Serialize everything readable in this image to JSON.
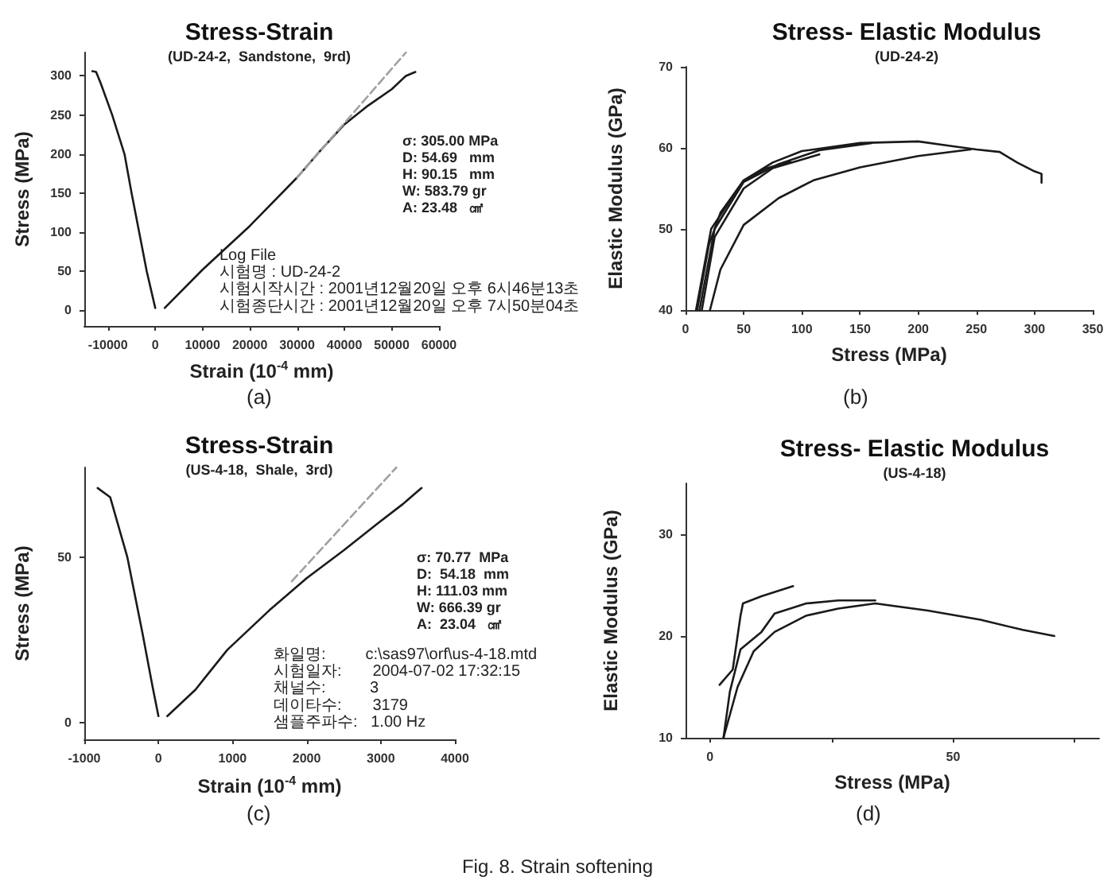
{
  "chart_data": [
    {
      "type": "line",
      "title": "Stress-Strain",
      "subtitle": "(UD-24-2,  Sandstone,  9rd)",
      "xlabel": "Strain (10$^{-4}$ mm)",
      "ylabel": "Stress (MPa)",
      "marker": "none",
      "xlim": [
        -15000,
        60000
      ],
      "xticks": [
        -10000,
        0,
        10000,
        20000,
        30000,
        40000,
        50000,
        60000
      ],
      "ylim": [
        -20,
        330
      ],
      "yticks": [
        0,
        50,
        100,
        150,
        200,
        250,
        300
      ],
      "series": [
        {
          "color": "#1a1a1a",
          "x": [
            0,
            -1800,
            -3400,
            -5000,
            -6500,
            -9100,
            -11500,
            -12500,
            -13300
          ],
          "values": [
            3,
            50,
            100,
            150,
            200,
            250,
            290,
            305,
            306
          ]
        },
        {
          "color": "#1a1a1a",
          "x": [
            2000,
            10000,
            20000,
            30000,
            35000,
            40000,
            45000,
            50000,
            53000,
            55000
          ],
          "values": [
            3,
            52,
            108,
            170,
            205,
            238,
            262,
            283,
            300,
            305
          ]
        },
        {
          "color": "#a0a0a0",
          "line_style": "dashed",
          "x": [
            30000,
            53000
          ],
          "values": [
            170,
            330
          ]
        }
      ],
      "annotations": [
        "(a)",
        "σ: 305.00 MPa",
        "D: 54.69   mm",
        "H: 90.15   mm",
        "W: 583.79 gr",
        "A: 23.48   ㎠",
        "Log File",
        "시험명 : UD-24-2",
        "시험시작시간 : 2001년12월20일 오후 6시46분13초",
        "시험종단시간 : 2001년12월20일 오후 7시50분04초"
      ]
    },
    {
      "type": "line",
      "title": "Stress- Elastic Modulus",
      "subtitle": "(UD-24-2)",
      "xlabel": "Stress (MPa)",
      "ylabel": "Elastic Modulus (GPa)",
      "marker": "none",
      "xlim": [
        0,
        350
      ],
      "xticks": [
        0,
        50,
        100,
        150,
        200,
        250,
        300,
        350
      ],
      "ylim": [
        40,
        70
      ],
      "yticks": [
        40,
        50,
        60,
        70
      ],
      "series": [
        {
          "color": "#1a1a1a",
          "x": [
            10,
            20,
            30,
            50,
            75,
            100,
            150,
            200,
            225,
            250,
            270,
            285,
            300,
            306,
            306
          ],
          "values": [
            40,
            48,
            52,
            56,
            58.2,
            59.6,
            60.6,
            60.8,
            60.3,
            59.8,
            59.5,
            58.2,
            57.1,
            56.8,
            55.7
          ]
        },
        {
          "color": "#1a1a1a",
          "x": [
            21,
            30,
            50,
            80,
            110,
            150,
            200,
            245
          ],
          "values": [
            40,
            45,
            50.5,
            53.8,
            56,
            57.6,
            59,
            59.8
          ]
        },
        {
          "color": "#1a1a1a",
          "x": [
            12,
            25,
            50,
            80,
            115,
            160
          ],
          "values": [
            40,
            50,
            55.8,
            58,
            59.7,
            60.6
          ]
        },
        {
          "color": "#1a1a1a",
          "x": [
            14,
            25,
            50,
            75,
            115
          ],
          "values": [
            40,
            49,
            55,
            57.5,
            59.2
          ]
        },
        {
          "color": "#1a1a1a",
          "x": [
            9,
            22,
            50,
            70,
            90
          ],
          "values": [
            40,
            50,
            56,
            57.5,
            58.3
          ]
        }
      ],
      "annotations": [
        "(b)"
      ]
    },
    {
      "type": "line",
      "title": "Stress-Strain",
      "subtitle": "(US-4-18,  Shale,  3rd)",
      "xlabel": "Strain (10$^{-4}$ mm)",
      "ylabel": "Stress (MPa)",
      "marker": "none",
      "xlim": [
        -1000,
        4000
      ],
      "xticks": [
        -1000,
        0,
        1000,
        2000,
        3000,
        4000
      ],
      "ylim": [
        -5,
        77
      ],
      "yticks": [
        0,
        50
      ],
      "series": [
        {
          "color": "#1a1a1a",
          "x": [
            -820,
            -650,
            -420,
            -215,
            -80,
            0
          ],
          "values": [
            70.8,
            68,
            50,
            27,
            11,
            2
          ]
        },
        {
          "color": "#1a1a1a",
          "x": [
            120,
            500,
            930,
            1500,
            2000,
            2500,
            2950,
            3300,
            3550
          ],
          "values": [
            2,
            10,
            22,
            34,
            43.6,
            52,
            60,
            66,
            70.8
          ]
        },
        {
          "color": "#a0a0a0",
          "line_style": "dashed",
          "x": [
            1800,
            3210
          ],
          "values": [
            42.7,
            77
          ]
        }
      ],
      "annotations": [
        "(c)",
        "σ: 70.77  MPa",
        "D:  54.18  mm",
        "H: 111.03 mm",
        "W: 666.39 gr",
        "A:  23.04   ㎠",
        "화일명:         c:\\sas97\\orf\\us-4-18.mtd",
        "시험일자:       2004-07-02 17:32:15",
        "채널수:          3",
        "데이타수:       3179",
        "샘플주파수:   1.00 Hz"
      ]
    },
    {
      "type": "line",
      "title": "Stress- Elastic Modulus",
      "subtitle": "(US-4-18)",
      "xlabel": "Stress (MPa)",
      "ylabel": "Elastic Modulus (GPa)",
      "marker": "none",
      "xlim": [
        -5,
        80
      ],
      "xticks": [
        0,
        {
          "value": 25,
          "label": null
        },
        50,
        {
          "value": 75,
          "label": null
        }
      ],
      "ylim": [
        10,
        35
      ],
      "yticks": [
        10,
        20,
        30
      ],
      "series": [
        {
          "color": "#1a1a1a",
          "x": [
            2,
            4.7,
            6.3,
            6.8,
            10.6,
            17.1
          ],
          "values": [
            15.2,
            16.7,
            22,
            23.2,
            23.9,
            24.9
          ]
        },
        {
          "color": "#1a1a1a",
          "x": [
            2.8,
            4.1,
            6.3,
            10.6,
            13.3,
            19.8,
            26.4,
            34
          ],
          "values": [
            10,
            14.5,
            18.7,
            20.4,
            22.2,
            23.2,
            23.5,
            23.5
          ]
        },
        {
          "color": "#1a1a1a",
          "x": [
            2.8,
            5.7,
            9,
            13.3,
            19.8,
            26.4,
            34,
            44.8,
            55.6,
            64.3,
            70.8
          ],
          "values": [
            10,
            15,
            18.5,
            20.4,
            22,
            22.7,
            23.2,
            22.5,
            21.6,
            20.6,
            20
          ]
        }
      ],
      "annotations": [
        "(d)",
        "Fig. 8. Strain softening"
      ]
    }
  ]
}
